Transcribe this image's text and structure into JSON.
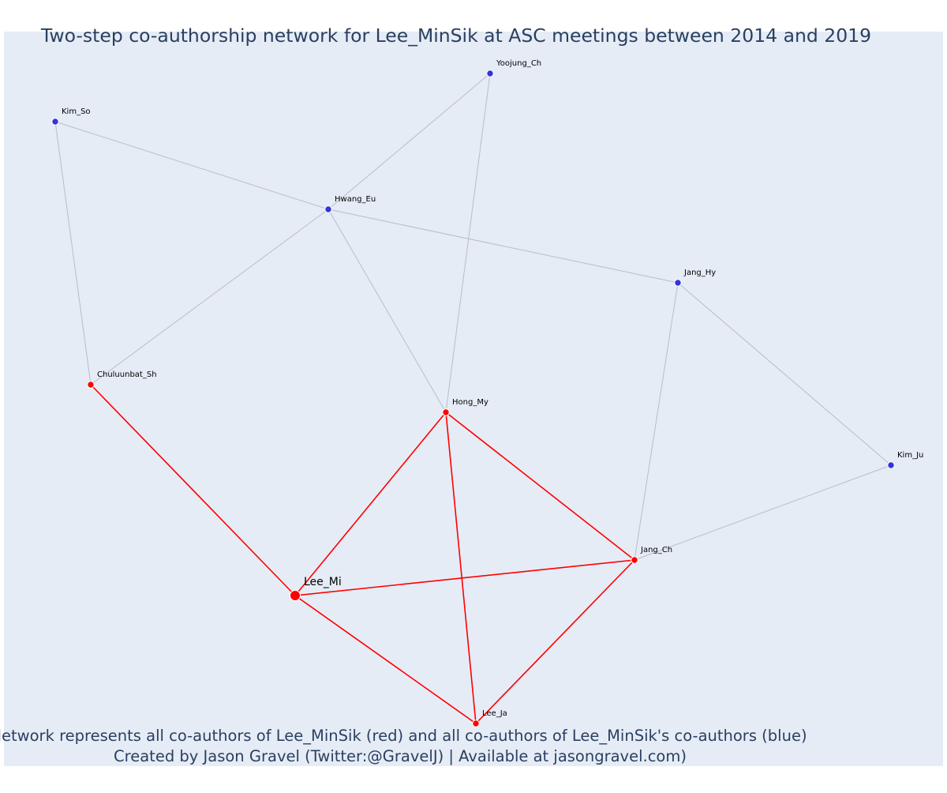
{
  "title": "Two-step co-authorship network for Lee_MinSik at ASC meetings between 2014 and 2019",
  "footer_lines": [
    "Network represents all co-authors of Lee_MinSik (red) and all co-authors of Lee_MinSik's co-authors (blue)",
    "Created by Jason Gravel (Twitter:@GravelJ) | Available at jasongravel.com)"
  ],
  "colors": {
    "background": "#e5ecf6",
    "text": "#2a3f5f",
    "first_degree": "#ff0000",
    "second_degree": "#3333dd",
    "second_degree_edge": "#b9bdca"
  },
  "nodes": [
    {
      "id": "lee_mi",
      "label": "Lee_Mi",
      "group": "focal"
    },
    {
      "id": "chuluunbat_sh",
      "label": "Chuluunbat_Sh",
      "group": "first"
    },
    {
      "id": "hong_my",
      "label": "Hong_My",
      "group": "first"
    },
    {
      "id": "jang_ch",
      "label": "Jang_Ch",
      "group": "first"
    },
    {
      "id": "lee_ja",
      "label": "Lee_Ja",
      "group": "first"
    },
    {
      "id": "kim_so",
      "label": "Kim_So",
      "group": "second"
    },
    {
      "id": "yoojung_ch",
      "label": "Yoojung_Ch",
      "group": "second"
    },
    {
      "id": "hwang_eu",
      "label": "Hwang_Eu",
      "group": "second"
    },
    {
      "id": "jang_hy",
      "label": "Jang_Hy",
      "group": "second"
    },
    {
      "id": "kim_ju",
      "label": "Kim_Ju",
      "group": "second"
    }
  ],
  "edges": [
    {
      "source": "lee_mi",
      "target": "chuluunbat_sh",
      "kind": "first"
    },
    {
      "source": "lee_mi",
      "target": "hong_my",
      "kind": "first"
    },
    {
      "source": "lee_mi",
      "target": "jang_ch",
      "kind": "first"
    },
    {
      "source": "lee_mi",
      "target": "lee_ja",
      "kind": "first"
    },
    {
      "source": "hong_my",
      "target": "jang_ch",
      "kind": "first"
    },
    {
      "source": "hong_my",
      "target": "lee_ja",
      "kind": "first"
    },
    {
      "source": "jang_ch",
      "target": "lee_ja",
      "kind": "first"
    },
    {
      "source": "kim_so",
      "target": "hwang_eu",
      "kind": "second"
    },
    {
      "source": "kim_so",
      "target": "chuluunbat_sh",
      "kind": "second"
    },
    {
      "source": "yoojung_ch",
      "target": "hwang_eu",
      "kind": "second"
    },
    {
      "source": "yoojung_ch",
      "target": "hong_my",
      "kind": "second"
    },
    {
      "source": "hwang_eu",
      "target": "jang_hy",
      "kind": "second"
    },
    {
      "source": "hwang_eu",
      "target": "chuluunbat_sh",
      "kind": "second"
    },
    {
      "source": "hwang_eu",
      "target": "hong_my",
      "kind": "second"
    },
    {
      "source": "jang_hy",
      "target": "kim_ju",
      "kind": "second"
    },
    {
      "source": "jang_hy",
      "target": "jang_ch",
      "kind": "second"
    },
    {
      "source": "kim_ju",
      "target": "jang_ch",
      "kind": "second"
    }
  ]
}
